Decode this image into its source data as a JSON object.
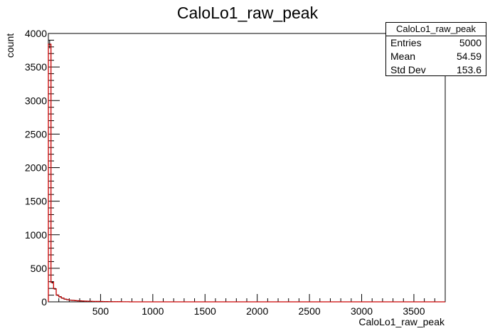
{
  "chart_data": {
    "type": "bar",
    "style": "histogram-step",
    "title": "CaloLo1_raw_peak",
    "xlabel": "CaloLo1_raw_peak",
    "ylabel": "count",
    "xlim": [
      0,
      3800
    ],
    "ylim": [
      0,
      4000
    ],
    "bin_width": 25,
    "x_ticks": [
      "500",
      "1000",
      "1500",
      "2000",
      "2500",
      "3000",
      "3500"
    ],
    "y_ticks": [
      "0",
      "500",
      "1000",
      "1500",
      "2000",
      "2500",
      "3000",
      "3500",
      "4000"
    ],
    "bins": [
      {
        "x": 0,
        "y": 3840
      },
      {
        "x": 25,
        "y": 290
      },
      {
        "x": 50,
        "y": 195
      },
      {
        "x": 75,
        "y": 100
      },
      {
        "x": 100,
        "y": 75
      },
      {
        "x": 125,
        "y": 55
      },
      {
        "x": 150,
        "y": 40
      },
      {
        "x": 175,
        "y": 32
      },
      {
        "x": 200,
        "y": 25
      },
      {
        "x": 225,
        "y": 22
      },
      {
        "x": 250,
        "y": 18
      },
      {
        "x": 275,
        "y": 15
      },
      {
        "x": 300,
        "y": 14
      },
      {
        "x": 325,
        "y": 12
      },
      {
        "x": 350,
        "y": 10
      },
      {
        "x": 375,
        "y": 9
      },
      {
        "x": 400,
        "y": 8
      },
      {
        "x": 425,
        "y": 7
      },
      {
        "x": 450,
        "y": 6
      },
      {
        "x": 475,
        "y": 6
      },
      {
        "x": 500,
        "y": 5
      },
      {
        "x": 525,
        "y": 4
      },
      {
        "x": 550,
        "y": 4
      },
      {
        "x": 575,
        "y": 3
      },
      {
        "x": 600,
        "y": 3
      },
      {
        "x": 625,
        "y": 2
      },
      {
        "x": 650,
        "y": 2
      },
      {
        "x": 675,
        "y": 2
      },
      {
        "x": 700,
        "y": 1
      },
      {
        "x": 725,
        "y": 1
      },
      {
        "x": 750,
        "y": 1
      }
    ],
    "line_color": "#cc0000",
    "errorbar_color": "#000000"
  },
  "stats": {
    "name": "CaloLo1_raw_peak",
    "rows": [
      {
        "label": "Entries",
        "value": "5000"
      },
      {
        "label": "Mean",
        "value": "54.59"
      },
      {
        "label": "Std Dev",
        "value": "153.6"
      }
    ]
  }
}
